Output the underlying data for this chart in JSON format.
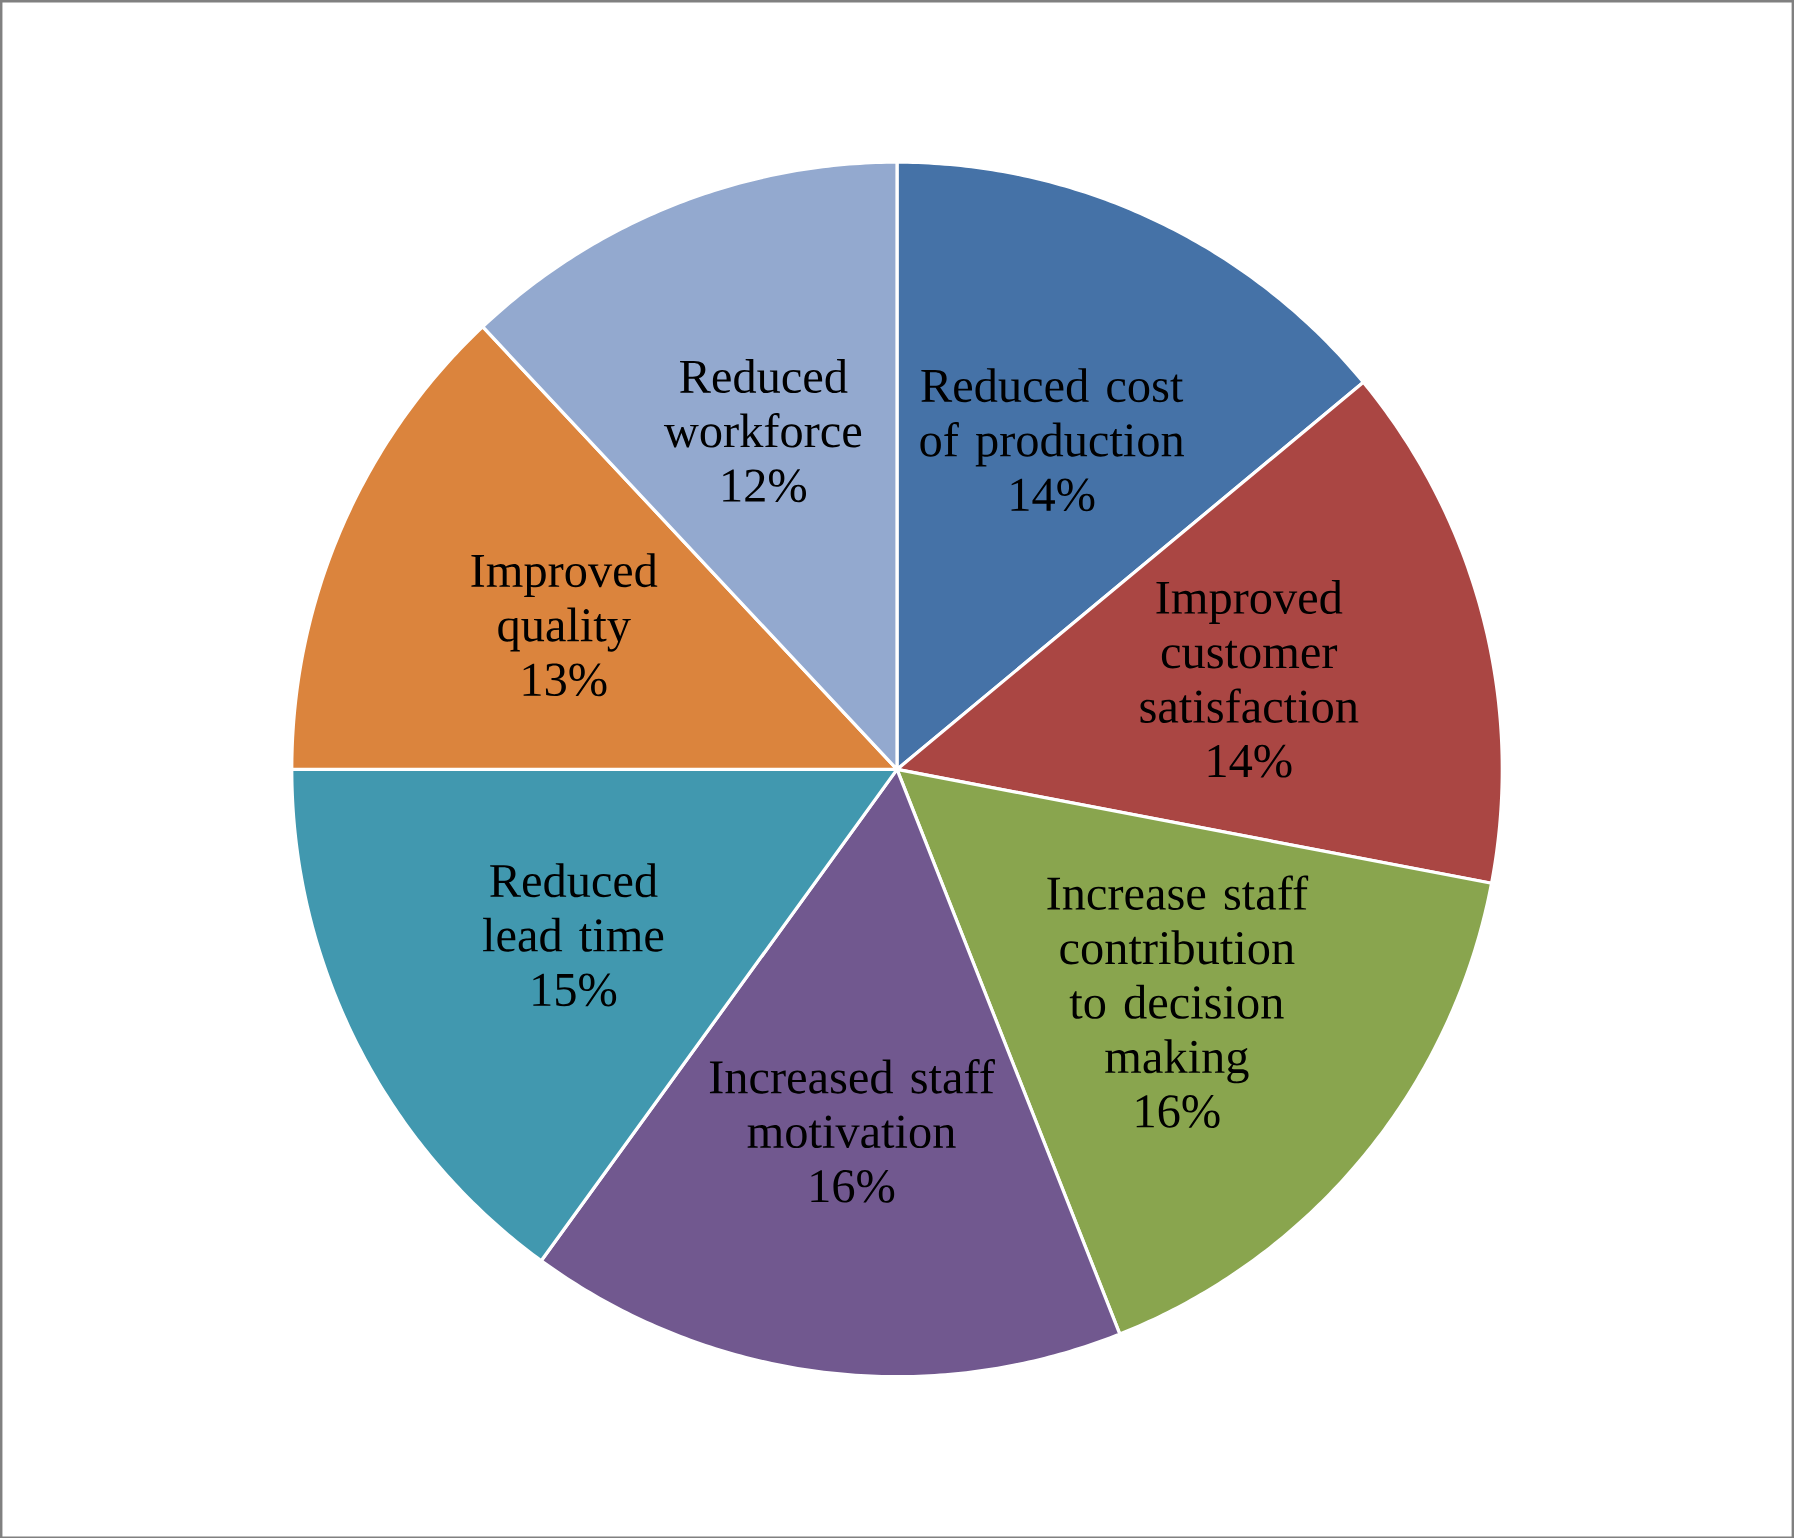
{
  "chart_data": {
    "type": "pie",
    "categories": [
      "Reduced cost of production",
      "Improved customer satisfaction",
      "Increase staff contribution to decision making",
      "Increased staff motivation",
      "Reduced lead time",
      "Improved quality",
      "Reduced workforce"
    ],
    "values": [
      14,
      14,
      16,
      16,
      15,
      13,
      12
    ],
    "value_labels": [
      "14%",
      "14%",
      "16%",
      "16%",
      "15%",
      "13%",
      "12%"
    ],
    "colors": [
      "#4572a7",
      "#aa4643",
      "#89a54e",
      "#71588f",
      "#4198af",
      "#db843d",
      "#93a9cf"
    ]
  }
}
